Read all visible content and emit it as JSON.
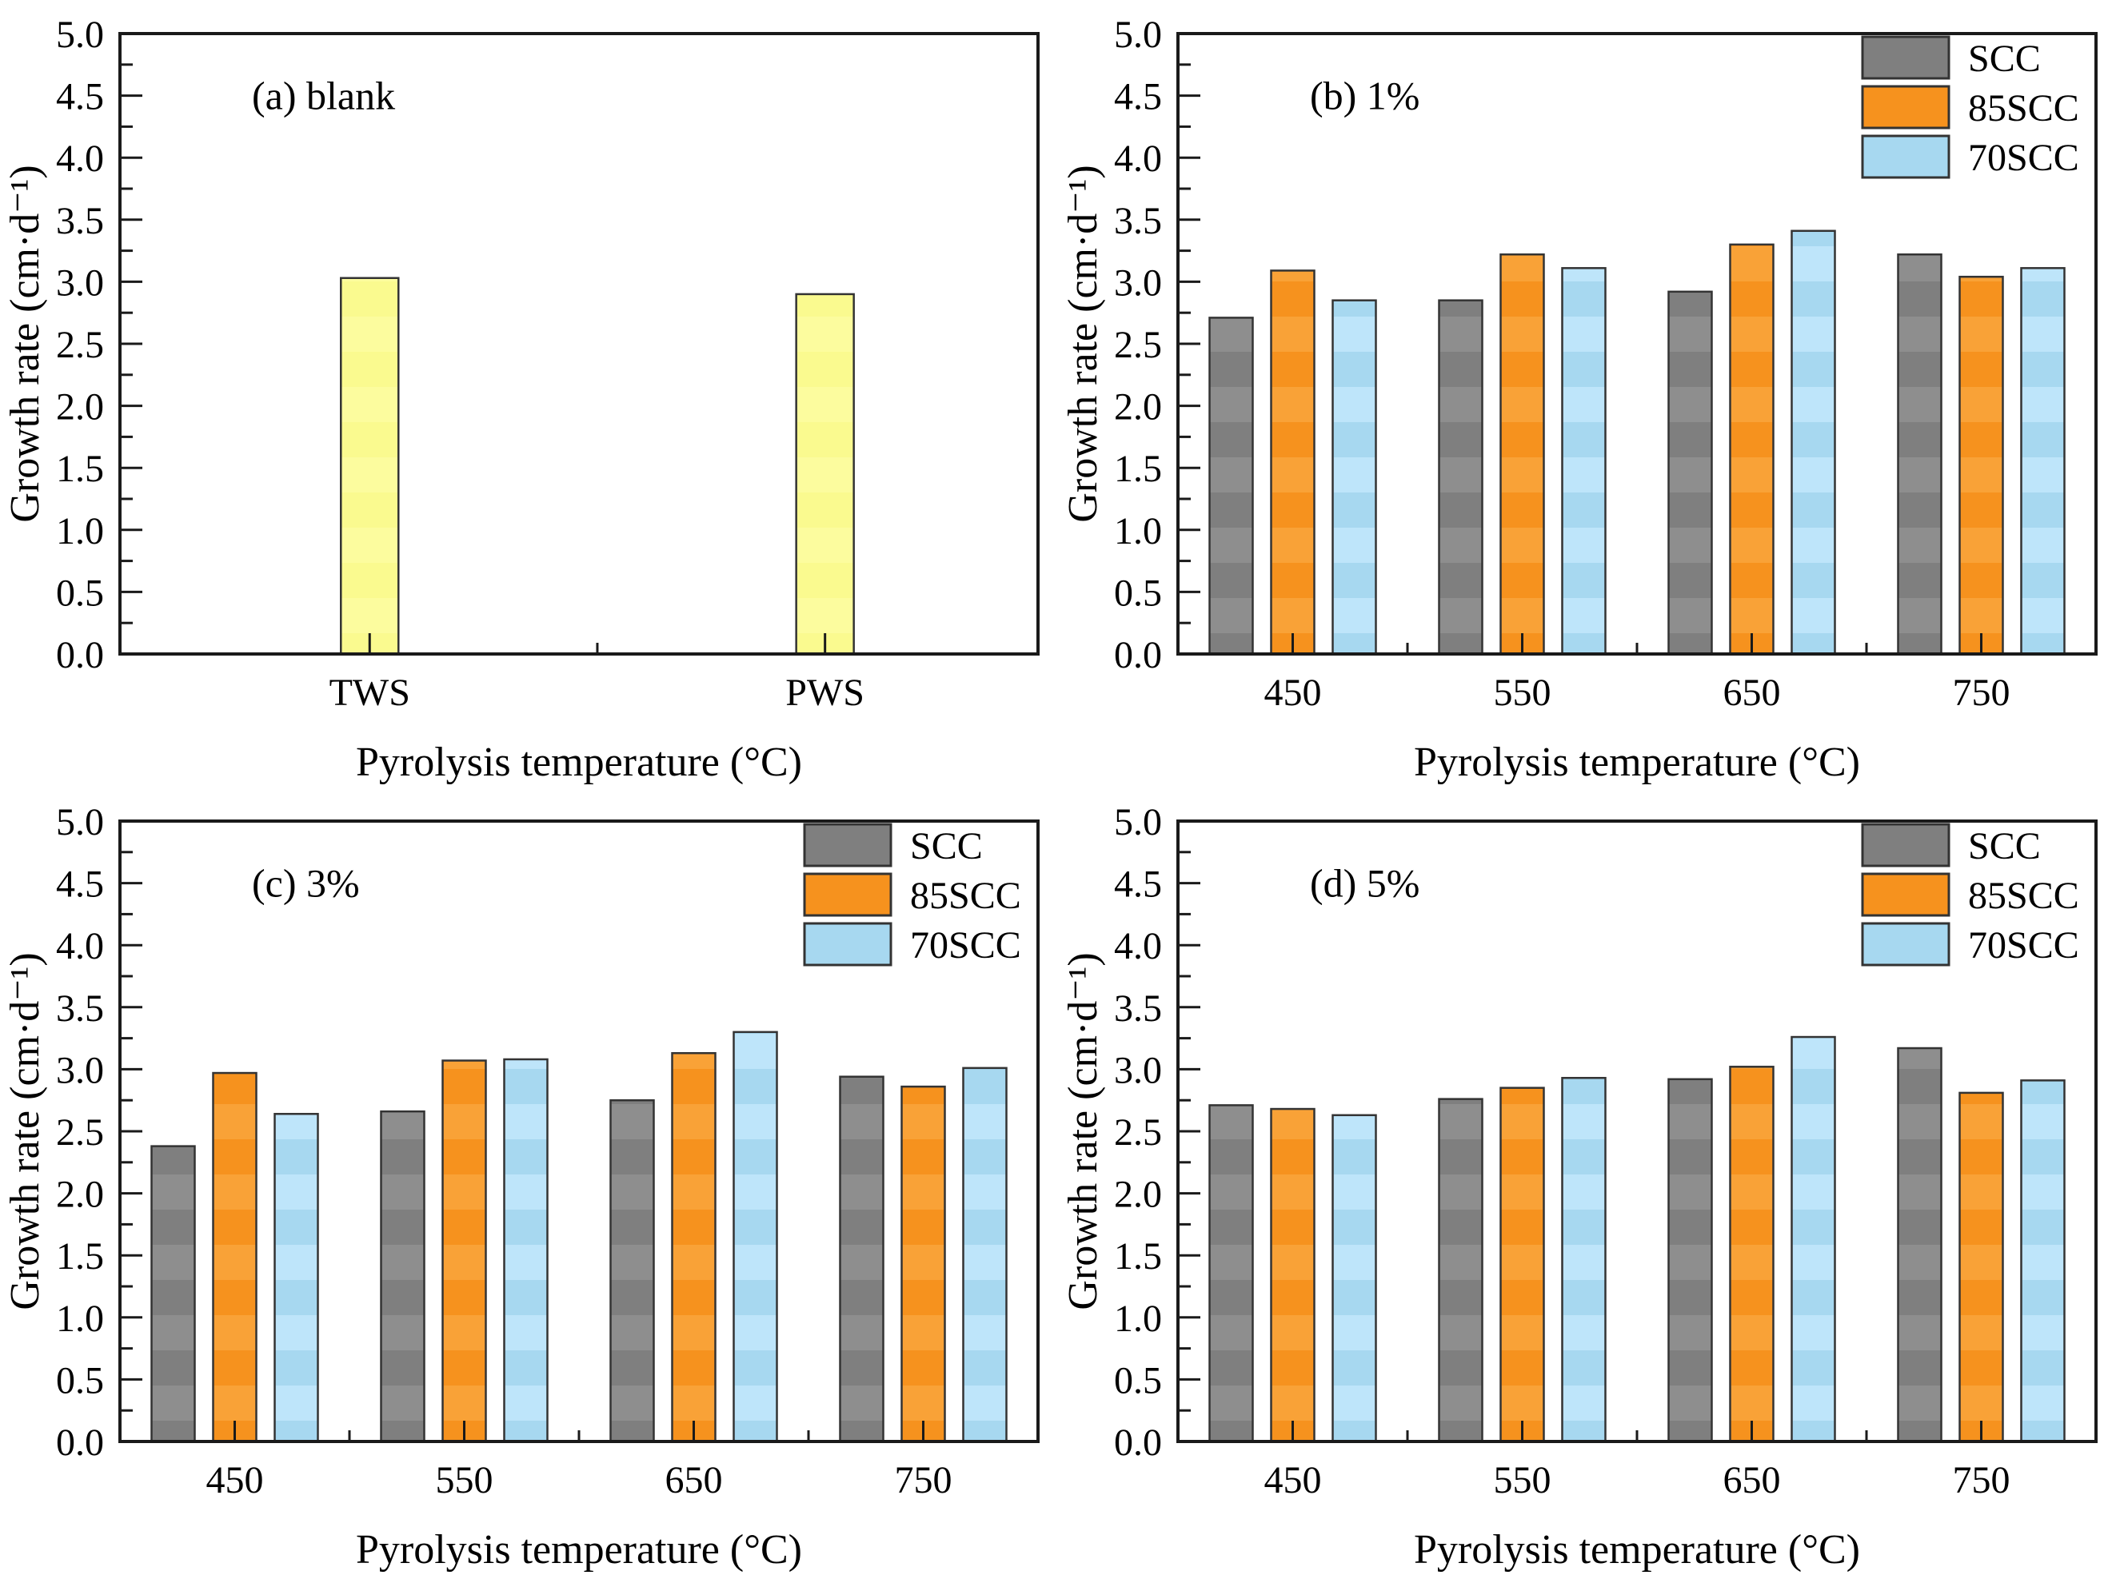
{
  "figure": {
    "ylabel": "Growth rate (cm·d⁻¹)",
    "xlabel": "Pyrolysis temperature (°C)",
    "colors": {
      "axis": "#1a1a1a",
      "bar_border": "#333333",
      "SCC": "#7f7f7f",
      "SCC_stripe": "#8e8e8e",
      "85SCC": "#f6921e",
      "85SCC_stripe": "#f9a237",
      "70SCC": "#a7d8f0",
      "70SCC_stripe": "#bee5fa",
      "blank": "#fafa8f",
      "blank_stripe": "#fcfc9e"
    },
    "legend_labels": [
      "SCC",
      "85SCC",
      "70SCC"
    ]
  },
  "chart_data": [
    {
      "type": "bar",
      "panel_id": "a",
      "panel_label": "(a) blank",
      "title": "",
      "xlabel": "Pyrolysis temperature (°C)",
      "ylabel": "Growth rate (cm·d⁻¹)",
      "categories": [
        "TWS",
        "PWS"
      ],
      "series": [
        {
          "name": "blank",
          "color_key": "blank",
          "values": [
            3.03,
            2.9
          ]
        }
      ],
      "ylim": [
        0.0,
        5.0
      ],
      "y_major_step": 0.5,
      "y_minor_step": 0.25,
      "grid": false,
      "show_legend": false,
      "legend_position": "top-right"
    },
    {
      "type": "bar",
      "panel_id": "b",
      "panel_label": "(b) 1%",
      "title": "",
      "xlabel": "Pyrolysis temperature (°C)",
      "ylabel": "Growth rate (cm·d⁻¹)",
      "categories": [
        "450",
        "550",
        "650",
        "750"
      ],
      "series": [
        {
          "name": "SCC",
          "color_key": "SCC",
          "values": [
            2.71,
            2.85,
            2.92,
            3.22
          ]
        },
        {
          "name": "85SCC",
          "color_key": "85SCC",
          "values": [
            3.09,
            3.22,
            3.3,
            3.04
          ]
        },
        {
          "name": "70SCC",
          "color_key": "70SCC",
          "values": [
            2.85,
            3.11,
            3.41,
            3.11
          ]
        }
      ],
      "ylim": [
        0.0,
        5.0
      ],
      "y_major_step": 0.5,
      "y_minor_step": 0.25,
      "grid": false,
      "show_legend": true,
      "legend_position": "top-right"
    },
    {
      "type": "bar",
      "panel_id": "c",
      "panel_label": "(c) 3%",
      "title": "",
      "xlabel": "Pyrolysis temperature (°C)",
      "ylabel": "Growth rate (cm·d⁻¹)",
      "categories": [
        "450",
        "550",
        "650",
        "750"
      ],
      "series": [
        {
          "name": "SCC",
          "color_key": "SCC",
          "values": [
            2.38,
            2.66,
            2.75,
            2.94
          ]
        },
        {
          "name": "85SCC",
          "color_key": "85SCC",
          "values": [
            2.97,
            3.07,
            3.13,
            2.86
          ]
        },
        {
          "name": "70SCC",
          "color_key": "70SCC",
          "values": [
            2.64,
            3.08,
            3.3,
            3.01
          ]
        }
      ],
      "ylim": [
        0.0,
        5.0
      ],
      "y_major_step": 0.5,
      "y_minor_step": 0.25,
      "grid": false,
      "show_legend": true,
      "legend_position": "top-right"
    },
    {
      "type": "bar",
      "panel_id": "d",
      "panel_label": "(d) 5%",
      "title": "",
      "xlabel": "Pyrolysis temperature (°C)",
      "ylabel": "Growth rate (cm·d⁻¹)",
      "categories": [
        "450",
        "550",
        "650",
        "750"
      ],
      "series": [
        {
          "name": "SCC",
          "color_key": "SCC",
          "values": [
            2.71,
            2.76,
            2.92,
            3.17
          ]
        },
        {
          "name": "85SCC",
          "color_key": "85SCC",
          "values": [
            2.68,
            2.85,
            3.02,
            2.81
          ]
        },
        {
          "name": "70SCC",
          "color_key": "70SCC",
          "values": [
            2.63,
            2.93,
            3.26,
            2.91
          ]
        }
      ],
      "ylim": [
        0.0,
        5.0
      ],
      "y_major_step": 0.5,
      "y_minor_step": 0.25,
      "grid": false,
      "show_legend": true,
      "legend_position": "top-right"
    }
  ]
}
